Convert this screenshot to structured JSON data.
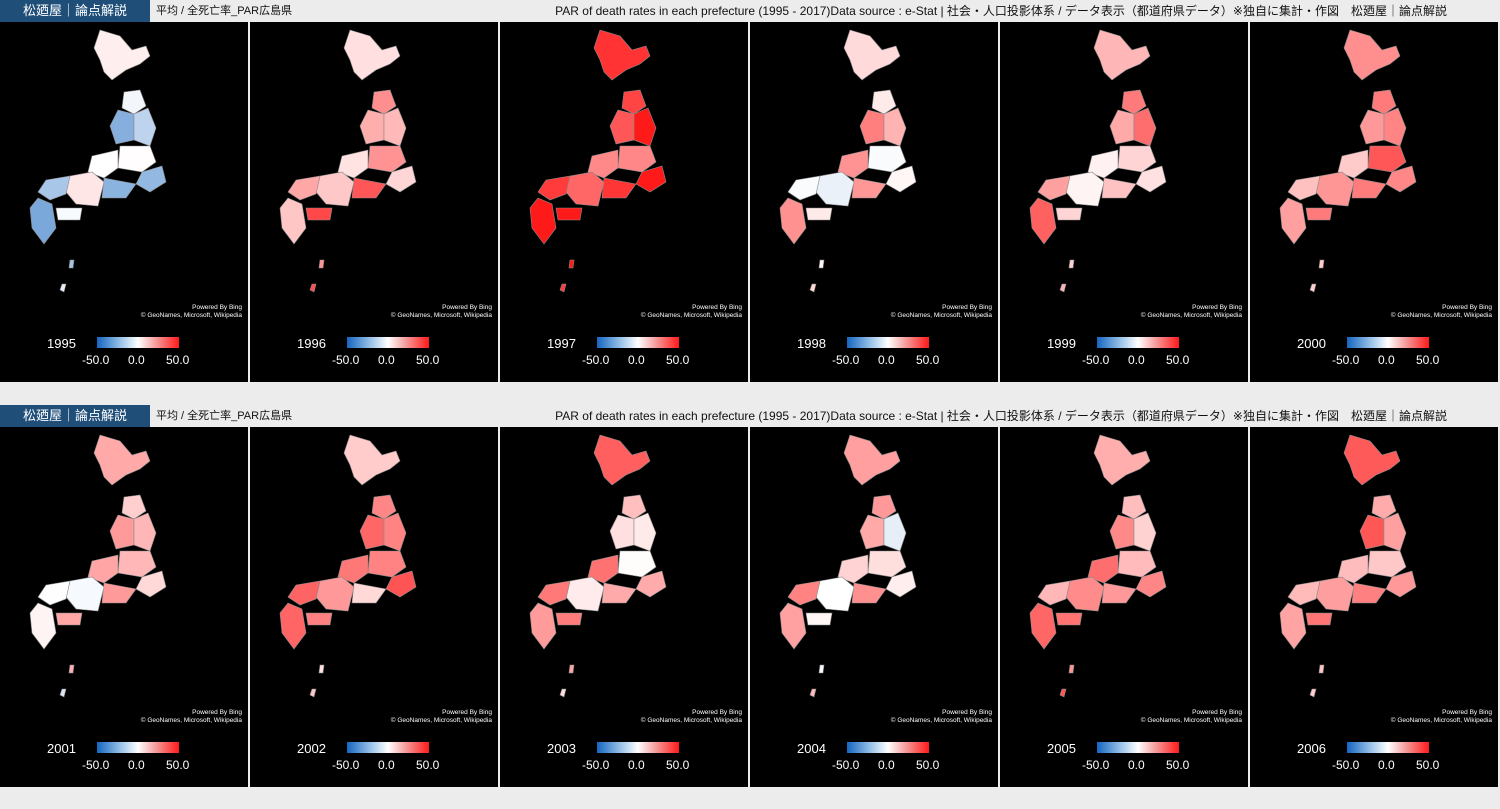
{
  "header": {
    "brand": "松廼屋｜論点解説",
    "subtitle": "平均 / 全死亡率_PAR広島県",
    "title": "PAR of death rates in each prefecture (1995 - 2017)Data source : e-Stat | 社会・人口投影体系 / データ表示（都道府県データ）※独自に集計・作図　松廼屋｜論点解説"
  },
  "legend": {
    "min_label": "-50.0",
    "mid_label": "0.0",
    "max_label": "50.0",
    "color_low": "#1565c0",
    "color_mid": "#ffffff",
    "color_high": "#ff1a1a"
  },
  "map_credit": {
    "line1": "Powered By Bing",
    "line2": "© GeoNames, Microsoft, Wikipedia"
  },
  "sections": [
    {
      "panels": [
        {
          "year": "1995",
          "level": -0.22
        },
        {
          "year": "1996",
          "level": 0.45
        },
        {
          "year": "1997",
          "level": 0.85
        },
        {
          "year": "1998",
          "level": 0.25
        },
        {
          "year": "1999",
          "level": 0.35
        },
        {
          "year": "2000",
          "level": 0.4
        }
      ]
    },
    {
      "panels": [
        {
          "year": "2001",
          "level": 0.15
        },
        {
          "year": "2002",
          "level": 0.45
        },
        {
          "year": "2003",
          "level": 0.35
        },
        {
          "year": "2004",
          "level": 0.2
        },
        {
          "year": "2005",
          "level": 0.4
        },
        {
          "year": "2006",
          "level": 0.42
        }
      ]
    }
  ]
}
